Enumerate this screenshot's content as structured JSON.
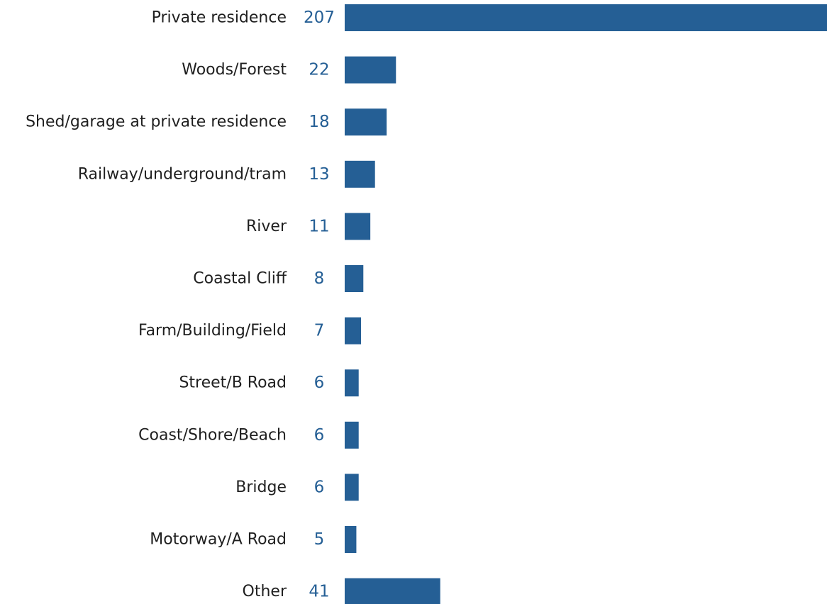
{
  "chart_data": {
    "type": "bar",
    "orientation": "horizontal",
    "categories": [
      "Private residence",
      "Woods/Forest",
      "Shed/garage at private residence",
      "Railway/underground/tram",
      "River",
      "Coastal Cliff",
      "Farm/Building/Field",
      "Street/B Road",
      "Coast/Shore/Beach",
      "Bridge",
      "Motorway/A Road",
      "Other"
    ],
    "values": [
      207,
      22,
      18,
      13,
      11,
      8,
      7,
      6,
      6,
      6,
      5,
      41
    ],
    "title": "",
    "xlabel": "",
    "ylabel": "",
    "xlim": [
      0,
      207
    ],
    "grid": false,
    "legend": "none",
    "data_labels": true
  },
  "colors": {
    "bar": "#255f95",
    "value_text": "#255f95",
    "category_text": "#1f1f1f",
    "background": "#ffffff"
  }
}
